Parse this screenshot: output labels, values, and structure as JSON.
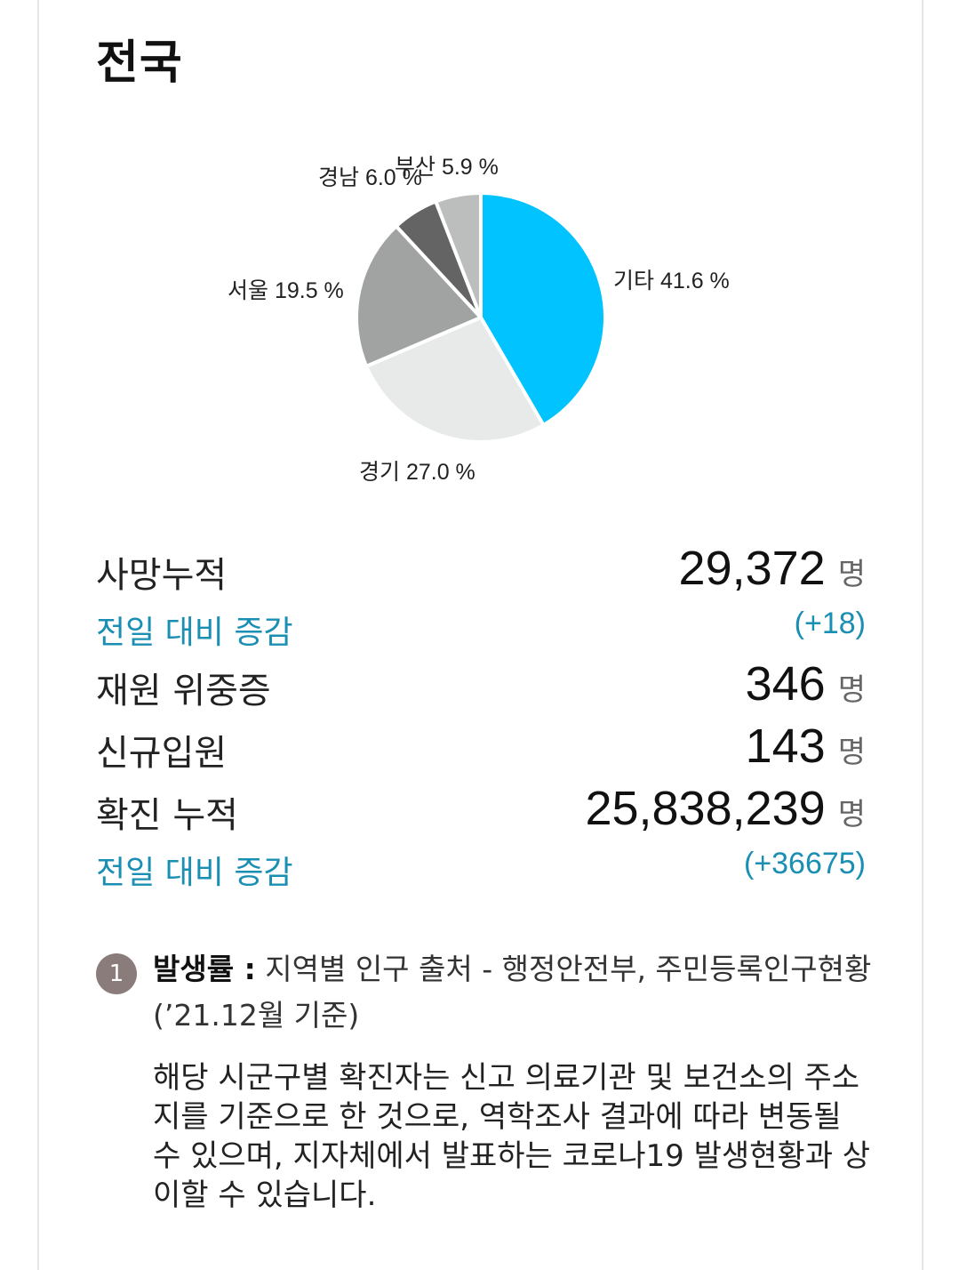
{
  "header": {
    "title": "전국"
  },
  "chart_data": {
    "type": "pie",
    "title": "",
    "slices": [
      {
        "label": "기타",
        "value": 41.6,
        "display": "기타 41.6 %",
        "color": "#00c3ff"
      },
      {
        "label": "경기",
        "value": 27.0,
        "display": "경기 27.0 %",
        "color": "#e8e9e9"
      },
      {
        "label": "서울",
        "value": 19.5,
        "display": "서울 19.5 %",
        "color": "#a1a2a2"
      },
      {
        "label": "경남",
        "value": 6.0,
        "display": "경남 6.0 %",
        "color": "#646464"
      },
      {
        "label": "부산",
        "value": 5.9,
        "display": "부산 5.9 %",
        "color": "#bcbdbd"
      }
    ],
    "unit": "%"
  },
  "stats": {
    "deaths": {
      "label": "사망누적",
      "value": "29,372",
      "unit": "명"
    },
    "deaths_change": {
      "label": "전일 대비 증감",
      "value": "(+18)"
    },
    "critical": {
      "label": "재원 위중증",
      "value": "346",
      "unit": "명"
    },
    "new_admissions": {
      "label": "신규입원",
      "value": "143",
      "unit": "명"
    },
    "confirmed": {
      "label": "확진 누적",
      "value": "25,838,239",
      "unit": "명"
    },
    "confirmed_change": {
      "label": "전일 대비 증감",
      "value": "(+36675)"
    }
  },
  "notes": {
    "badge": "1",
    "title": "발생률 :",
    "source": " 지역별 인구 출처 - 행정안전부, 주민등록인구현황 (’21.12월 기준)",
    "detail": "해당 시군구별 확진자는 신고 의료기관 및 보건소의 주소지를 기준으로 한 것으로, 역학조사 결과에 따라 변동될 수 있으며, 지자체에서 발표하는 코로나19 발생현황과 상이할 수 있습니다."
  }
}
